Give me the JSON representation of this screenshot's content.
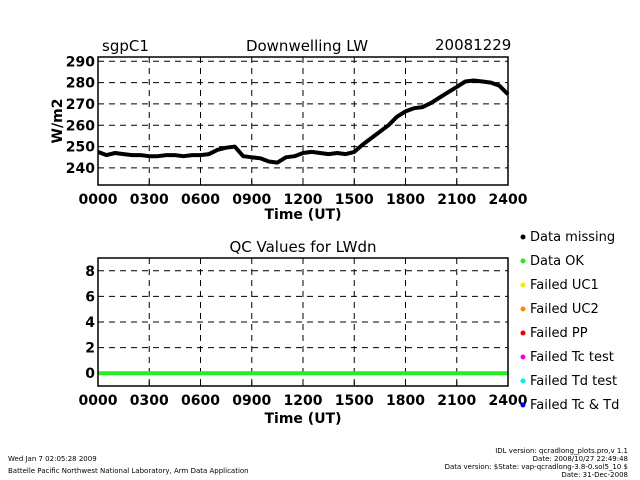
{
  "header": {
    "station": "sgpC1",
    "date": "20081229"
  },
  "chart_data": [
    {
      "type": "line",
      "title": "Downwelling LW",
      "xlabel": "Time (UT)",
      "ylabel": "W/m2",
      "xlim": [
        0,
        24
      ],
      "ylim": [
        232,
        292
      ],
      "x_tick_labels": [
        "0000",
        "0300",
        "0600",
        "0900",
        "1200",
        "1500",
        "1800",
        "2100",
        "2400"
      ],
      "y_tick_labels": [
        "240",
        "250",
        "260",
        "270",
        "280",
        "290"
      ],
      "grid": "dashed",
      "series": [
        {
          "color": "#000000",
          "x": [
            0,
            0.5,
            1,
            1.5,
            2,
            2.5,
            3,
            3.5,
            4,
            4.5,
            5,
            5.5,
            6,
            6.5,
            7,
            7.5,
            8,
            8.5,
            9,
            9.5,
            10,
            10.5,
            11,
            11.5,
            12,
            12.5,
            13,
            13.5,
            14,
            14.5,
            15,
            15.5,
            16,
            16.5,
            17,
            17.5,
            18,
            18.5,
            19,
            19.5,
            20,
            20.5,
            21,
            21.5,
            22,
            22.5,
            23,
            23.5,
            24
          ],
          "y": [
            247.5,
            246,
            247,
            246.5,
            246,
            246,
            245.5,
            245.5,
            246,
            246,
            245.5,
            246,
            246,
            246.5,
            248.5,
            249.5,
            250,
            245.5,
            245,
            244.5,
            243,
            242.5,
            245,
            245.5,
            247,
            247.5,
            247,
            246.5,
            247,
            246.5,
            247.5,
            251,
            254,
            257,
            260,
            264,
            266.5,
            268,
            268.5,
            270.5,
            273,
            275.5,
            278,
            280.5,
            281,
            280.5,
            280,
            278.5,
            274.5
          ]
        }
      ]
    },
    {
      "type": "line",
      "title": "QC Values for LWdn",
      "xlabel": "Time (UT)",
      "xlim": [
        0,
        24
      ],
      "ylim": [
        -1,
        9
      ],
      "x_tick_labels": [
        "0000",
        "0300",
        "0600",
        "0900",
        "1200",
        "1500",
        "1800",
        "2100",
        "2400"
      ],
      "y_tick_labels": [
        "0",
        "2",
        "4",
        "6",
        "8"
      ],
      "grid": "dashed",
      "legend_position": "right",
      "series": [
        {
          "color": "#22ee22",
          "x": [
            0,
            24
          ],
          "y": [
            0,
            0
          ]
        }
      ],
      "legend": [
        {
          "label": "Data missing",
          "color": "#000000"
        },
        {
          "label": "Data OK",
          "color": "#22ee22"
        },
        {
          "label": "Failed UC1",
          "color": "#eeee00"
        },
        {
          "label": "Failed UC2",
          "color": "#ff8800"
        },
        {
          "label": "Failed PP",
          "color": "#ee0000"
        },
        {
          "label": "Failed Tc test",
          "color": "#ee00ee"
        },
        {
          "label": "Failed Td test",
          "color": "#00eeee"
        },
        {
          "label": "Failed Tc & Td",
          "color": "#0000ee"
        }
      ]
    }
  ],
  "footer": {
    "run_time": "Wed Jan  7 02:05:28 2009",
    "lab": "Battelle Pacific Northwest National Laboratory, Arm Data Application",
    "idl_version": "IDL version: qcradlong_plots.pro,v 1.1",
    "idl_date": "Date: 2008/10/27 22:49:48",
    "data_version": "Data version: $State: vap-qcradlong-3.8-0.sol5_10 $",
    "data_date": "Date: 31-Dec-2008"
  }
}
